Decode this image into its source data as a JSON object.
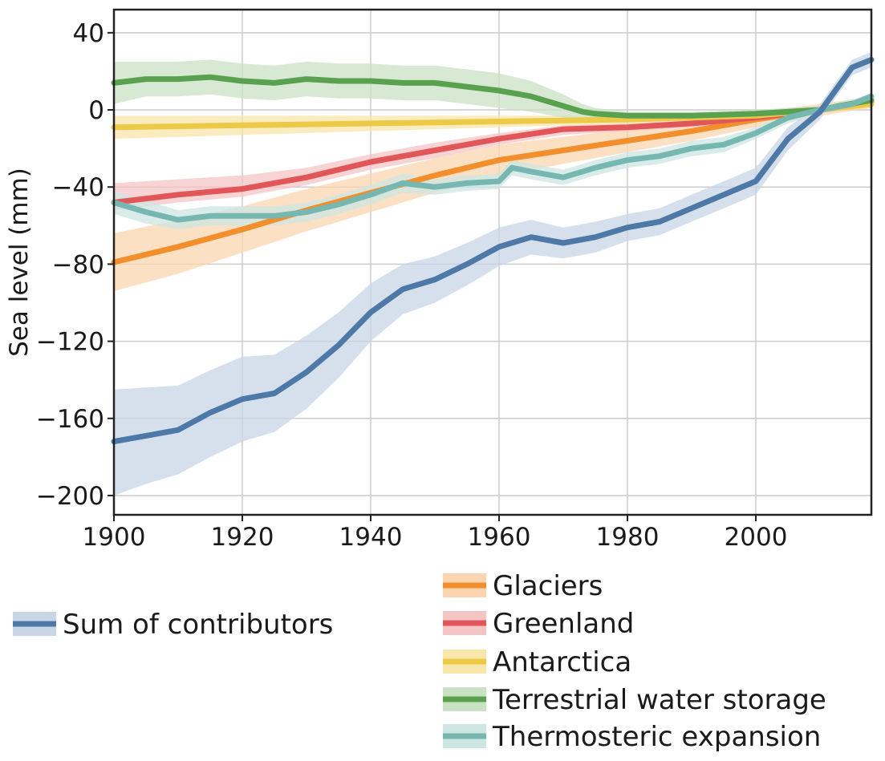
{
  "chart_data": {
    "type": "line",
    "title": "",
    "xlabel": "",
    "ylabel": "Sea level (mm)",
    "xlim": [
      1900,
      2018
    ],
    "ylim": [
      -210,
      52
    ],
    "xticks": [
      1900,
      1920,
      1940,
      1960,
      1980,
      2000
    ],
    "yticks": [
      40,
      0,
      -40,
      -80,
      -120,
      -160,
      -200
    ],
    "ytick_labels": [
      "40",
      "0",
      "−40",
      "−80",
      "−120",
      "−160",
      "−200"
    ],
    "grid": true,
    "legend": [
      {
        "position": "bottom-left",
        "entries": [
          "Sum of contributors"
        ]
      },
      {
        "position": "bottom-right",
        "entries": [
          "Glaciers",
          "Greenland",
          "Antarctica",
          "Terrestrial water storage",
          "Thermosteric expansion"
        ]
      }
    ],
    "series": [
      {
        "name": "Sum of contributors",
        "color": "#4e79a7",
        "band_color": "#c8d6e5",
        "x": [
          1900,
          1905,
          1910,
          1915,
          1920,
          1925,
          1930,
          1935,
          1940,
          1945,
          1950,
          1955,
          1960,
          1965,
          1970,
          1975,
          1980,
          1985,
          1990,
          1995,
          2000,
          2005,
          2010,
          2015,
          2018
        ],
        "y": [
          -172,
          -169,
          -166,
          -157,
          -150,
          -147,
          -136,
          -122,
          -105,
          -93,
          -88,
          -80,
          -71,
          -66,
          -69,
          -66,
          -61,
          -58,
          -51,
          -44,
          -37,
          -15,
          -1,
          22,
          26
        ],
        "lower": [
          -200,
          -194,
          -189,
          -180,
          -172,
          -167,
          -155,
          -139,
          -120,
          -106,
          -100,
          -91,
          -81,
          -75,
          -77,
          -74,
          -68,
          -65,
          -58,
          -51,
          -44,
          -21,
          -5,
          18,
          22
        ],
        "upper": [
          -145,
          -144,
          -143,
          -135,
          -128,
          -127,
          -117,
          -105,
          -90,
          -80,
          -76,
          -69,
          -61,
          -57,
          -61,
          -58,
          -54,
          -51,
          -44,
          -37,
          -30,
          -9,
          3,
          26,
          30
        ]
      },
      {
        "name": "Glaciers",
        "color": "#f28e2b",
        "band_color": "#fbd5b0",
        "x": [
          1900,
          1910,
          1920,
          1930,
          1940,
          1950,
          1960,
          1970,
          1980,
          1990,
          2000,
          2010,
          2018
        ],
        "y": [
          -79,
          -71,
          -62,
          -52,
          -43,
          -34,
          -26,
          -21,
          -16,
          -11,
          -5,
          0,
          4
        ],
        "lower": [
          -94,
          -85,
          -74,
          -63,
          -53,
          -43,
          -34,
          -28,
          -22,
          -16,
          -9,
          -3,
          1
        ],
        "upper": [
          -64,
          -57,
          -50,
          -41,
          -33,
          -25,
          -18,
          -14,
          -10,
          -6,
          -1,
          3,
          7
        ]
      },
      {
        "name": "Greenland",
        "color": "#e15759",
        "band_color": "#f5c4c5",
        "x": [
          1900,
          1910,
          1920,
          1930,
          1940,
          1950,
          1960,
          1970,
          1980,
          1990,
          2000,
          2010,
          2018
        ],
        "y": [
          -48,
          -44,
          -41,
          -35,
          -27,
          -21,
          -15,
          -10,
          -9,
          -7,
          -4,
          0,
          5
        ],
        "lower": [
          -52,
          -48,
          -45,
          -39,
          -31,
          -25,
          -18,
          -13,
          -11,
          -9,
          -6,
          -2,
          3
        ],
        "upper": [
          -38,
          -36,
          -34,
          -30,
          -23,
          -17,
          -12,
          -8,
          -7,
          -5,
          -2,
          2,
          7
        ]
      },
      {
        "name": "Antarctica",
        "color": "#edc948",
        "band_color": "#f8e6aa",
        "x": [
          1900,
          1920,
          1940,
          1960,
          1980,
          2000,
          2010,
          2018
        ],
        "y": [
          -9,
          -8,
          -7,
          -6,
          -5,
          -3,
          0,
          3
        ],
        "lower": [
          -15,
          -13,
          -11,
          -9,
          -7,
          -4,
          -1,
          1
        ],
        "upper": [
          -3,
          -3,
          -3,
          -3,
          -3,
          -2,
          1,
          5
        ]
      },
      {
        "name": "Terrestrial water storage",
        "color": "#59a14f",
        "band_color": "#c9e2c4",
        "x": [
          1900,
          1905,
          1910,
          1915,
          1920,
          1925,
          1930,
          1935,
          1940,
          1945,
          1950,
          1955,
          1960,
          1965,
          1970,
          1973,
          1975,
          1980,
          1990,
          2000,
          2005,
          2010,
          2013,
          2018
        ],
        "y": [
          14,
          16,
          16,
          17,
          15,
          14,
          16,
          15,
          15,
          14,
          14,
          12,
          10,
          7,
          2,
          -1,
          -2,
          -3,
          -3,
          -2,
          -1,
          0,
          2,
          5
        ],
        "lower": [
          3,
          7,
          7,
          8,
          6,
          5,
          7,
          6,
          6,
          5,
          5,
          3,
          1,
          -1,
          -4,
          -5,
          -5,
          -5,
          -5,
          -4,
          -3,
          -2,
          0,
          3
        ],
        "upper": [
          25,
          25,
          25,
          26,
          24,
          23,
          25,
          24,
          24,
          23,
          23,
          21,
          19,
          15,
          8,
          3,
          1,
          -1,
          -1,
          0,
          1,
          2,
          4,
          7
        ]
      },
      {
        "name": "Thermosteric expansion",
        "color": "#76b7b2",
        "band_color": "#cde6e3",
        "x": [
          1900,
          1905,
          1910,
          1915,
          1920,
          1925,
          1930,
          1935,
          1940,
          1945,
          1950,
          1955,
          1960,
          1962,
          1965,
          1970,
          1975,
          1980,
          1985,
          1990,
          1995,
          2000,
          2005,
          2010,
          2015,
          2018
        ],
        "y": [
          -48,
          -53,
          -57,
          -55,
          -55,
          -55,
          -53,
          -49,
          -44,
          -38,
          -40,
          -38,
          -37,
          -30,
          -32,
          -35,
          -30,
          -26,
          -24,
          -20,
          -18,
          -12,
          -4,
          0,
          3,
          7
        ],
        "lower": [
          -54,
          -59,
          -62,
          -60,
          -60,
          -60,
          -58,
          -54,
          -49,
          -43,
          -44,
          -42,
          -41,
          -34,
          -36,
          -39,
          -34,
          -30,
          -28,
          -24,
          -22,
          -15,
          -7,
          -2,
          1,
          5
        ],
        "upper": [
          -42,
          -47,
          -52,
          -50,
          -50,
          -50,
          -48,
          -44,
          -39,
          -33,
          -36,
          -34,
          -33,
          -26,
          -28,
          -31,
          -26,
          -22,
          -20,
          -16,
          -14,
          -9,
          -1,
          2,
          5,
          9
        ]
      }
    ]
  }
}
